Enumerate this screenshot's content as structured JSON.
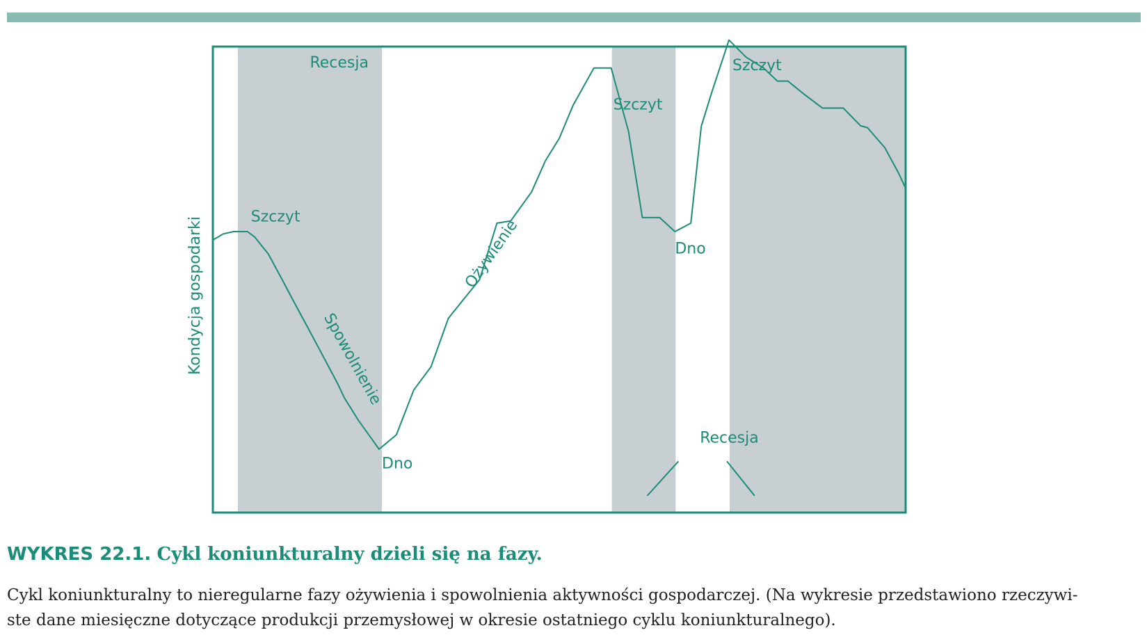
{
  "colors": {
    "accent": "#1a8c77",
    "band": "#c8cfd2",
    "top_bar": "#89bab4",
    "text": "#222222"
  },
  "figure": {
    "number": "WYKRES 22.1.",
    "title": "Cykl koniunkturalny dzieli się na fazy.",
    "description_lines": [
      "Cykl koniunkturalny to nieregularne fazy ożywienia i spowolnienia aktywności gospodarczej. (Na wykresie przedstawiono rzeczywi-",
      "ste dane miesięczne dotyczące produkcji przemysłowej w okresie ostatniego cyklu koniunkturalnego)."
    ]
  },
  "chart_data": {
    "type": "line",
    "title": "",
    "xlabel": "",
    "ylabel": "Kondycja gospodarki",
    "x_range": [
      0,
      100
    ],
    "y_range": [
      0,
      100
    ],
    "grid": false,
    "legend": "none",
    "recession_bands": [
      {
        "start": 3.6,
        "end": 24.4
      },
      {
        "start": 57.6,
        "end": 66.8
      },
      {
        "start": 74.6,
        "end": 100
      }
    ],
    "series": [
      {
        "points": [
          [
            0,
            58.5
          ],
          [
            1.5,
            59.8
          ],
          [
            3,
            60.3
          ],
          [
            5,
            60.3
          ],
          [
            6,
            59.2
          ],
          [
            8,
            55.5
          ],
          [
            10,
            50
          ],
          [
            12,
            44.4
          ],
          [
            14,
            38.9
          ],
          [
            16,
            33.3
          ],
          [
            18,
            27.7
          ],
          [
            19,
            24.6
          ],
          [
            21,
            19.8
          ],
          [
            24,
            13.6
          ],
          [
            26.5,
            16.7
          ],
          [
            29,
            26.3
          ],
          [
            31.5,
            31.3
          ],
          [
            34,
            41.7
          ],
          [
            36,
            45.4
          ],
          [
            38.5,
            50
          ],
          [
            41,
            62.1
          ],
          [
            43,
            62.6
          ],
          [
            46,
            68.8
          ],
          [
            48,
            75.5
          ],
          [
            50,
            80.3
          ],
          [
            52,
            87.4
          ],
          [
            55,
            95.4
          ],
          [
            57.5,
            95.4
          ],
          [
            60,
            81.8
          ],
          [
            62,
            63.3
          ],
          [
            64.5,
            63.3
          ],
          [
            66.7,
            60.3
          ],
          [
            69,
            62.1
          ],
          [
            70.5,
            82.9
          ],
          [
            72,
            90.1
          ],
          [
            74.5,
            101.4
          ],
          [
            77,
            97.7
          ],
          [
            79.5,
            95.4
          ],
          [
            81.5,
            92.6
          ],
          [
            83,
            92.6
          ],
          [
            85.5,
            89.6
          ],
          [
            88,
            86.8
          ],
          [
            91,
            86.8
          ],
          [
            93.5,
            83
          ],
          [
            94.5,
            82.6
          ],
          [
            97,
            78.3
          ],
          [
            99,
            72.8
          ],
          [
            100,
            69.6
          ]
        ]
      }
    ],
    "annotations": [
      {
        "text": "Recesja",
        "x": 14,
        "y": 95.5
      },
      {
        "text": "Szczyt",
        "x": 5.5,
        "y": 62.5
      },
      {
        "text": "Spowolnienie",
        "x": 16,
        "y": 42,
        "rotation": 61
      },
      {
        "text": "Dno",
        "x": 24.4,
        "y": 9.5
      },
      {
        "text": "Ożywienie",
        "x": 37.5,
        "y": 48,
        "rotation": -55
      },
      {
        "text": "Szczyt",
        "x": 57.8,
        "y": 86.5
      },
      {
        "text": "Dno",
        "x": 66.7,
        "y": 55.6
      },
      {
        "text": "Szczyt",
        "x": 75,
        "y": 94.9
      },
      {
        "text": "Recesja",
        "x": 70.3,
        "y": 15
      }
    ],
    "pointer_lines": [
      [
        [
          62.7,
          3.6
        ],
        [
          67.2,
          11
        ]
      ],
      [
        [
          74.2,
          11
        ],
        [
          78.2,
          3.6
        ]
      ]
    ]
  }
}
